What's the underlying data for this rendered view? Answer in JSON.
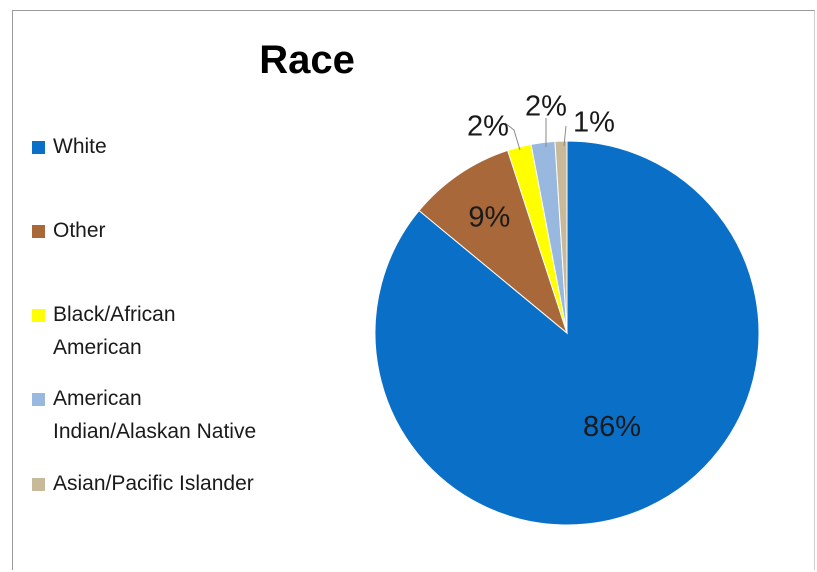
{
  "chart_data": {
    "type": "pie",
    "title": "Race",
    "legend_position": "left",
    "slices": [
      {
        "label": "White",
        "value": 86,
        "display": "86%",
        "color": "#0A6FC7"
      },
      {
        "label": "Other",
        "value": 9,
        "display": "9%",
        "color": "#A8683A"
      },
      {
        "label": "Black/African American",
        "value": 2,
        "display": "2%",
        "color": "#FFFF00"
      },
      {
        "label": "American Indian/Alaskan Native",
        "value": 2,
        "display": "2%",
        "color": "#98B8E0"
      },
      {
        "label": "Asian/Pacific Islander",
        "value": 1,
        "display": "1%",
        "color": "#C8B99A"
      }
    ]
  },
  "legend": {
    "items": [
      {
        "label_lines": [
          "White"
        ]
      },
      {
        "label_lines": [
          "Other"
        ]
      },
      {
        "label_lines": [
          "Black/African",
          "American"
        ]
      },
      {
        "label_lines": [
          "American",
          "Indian/Alaskan Native"
        ]
      },
      {
        "label_lines": [
          "Asian/Pacific Islander"
        ]
      }
    ]
  }
}
